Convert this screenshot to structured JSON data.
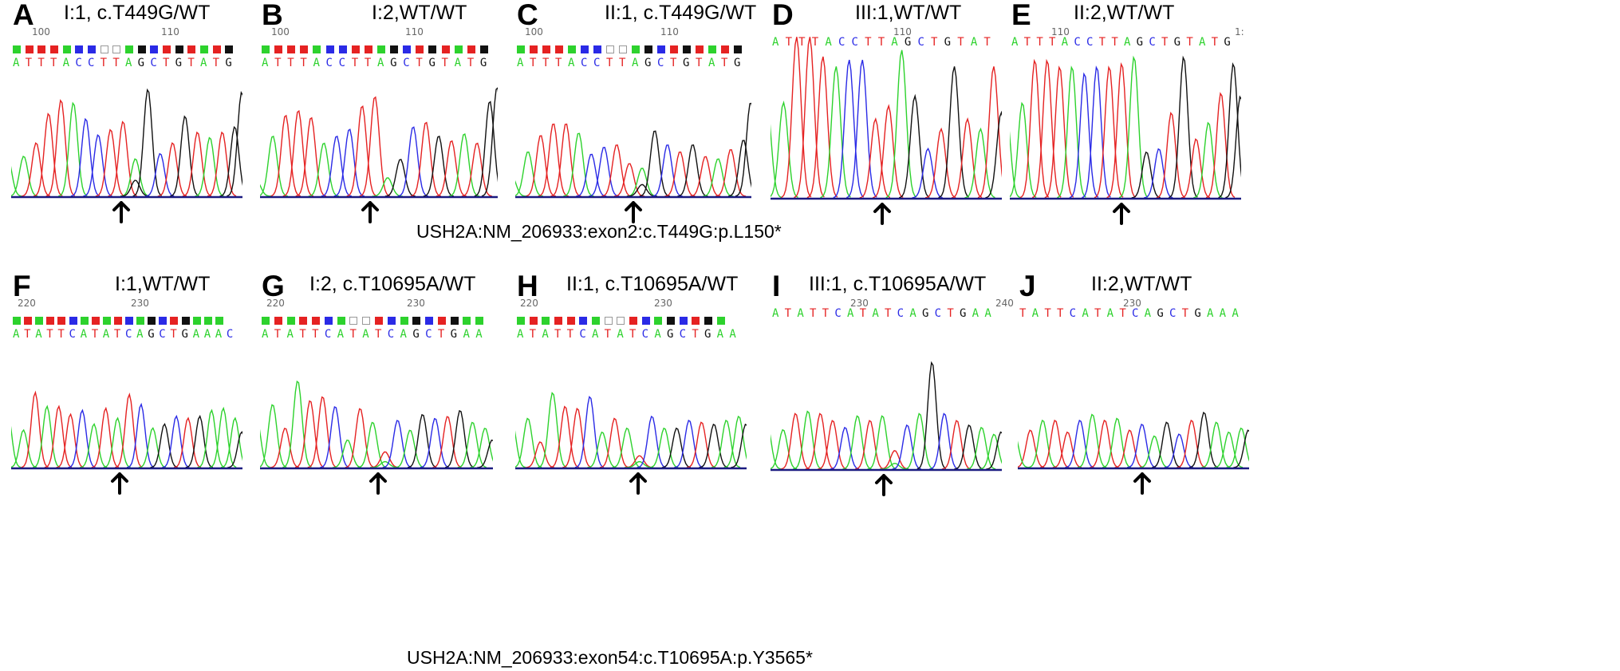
{
  "colors": {
    "A": "#2dd22d",
    "C": "#2a2ae6",
    "G": "#111111",
    "T": "#e52222"
  },
  "captions": {
    "row1": "USH2A:NM_206933:exon2:c.T449G:p.L150*",
    "row2": "USH2A:NM_206933:exon54:c.T10695A:p.Y3565*"
  },
  "panels": [
    {
      "letter": "A",
      "title": "I:1, c.T449G/WT",
      "numbers": [
        "100",
        "110"
      ],
      "squares": [
        "A",
        "T",
        "T",
        "T",
        "A",
        "C",
        "C",
        "T",
        "T",
        "A",
        "G",
        "C",
        "T",
        "G",
        "T",
        "A",
        "T",
        "G"
      ],
      "sequence": [
        "A",
        "T",
        "T",
        "T",
        "A",
        "C",
        "C",
        "T",
        "T",
        "A",
        "G",
        "C",
        "T",
        "G",
        "T",
        "A",
        "T",
        "G"
      ],
      "peaks": [
        [
          0.3,
          0.4,
          0.62,
          0.72,
          0.7,
          0.58,
          0.46,
          0.5,
          0.56,
          0.28,
          0.8,
          0.32,
          0.4,
          0.6,
          0.48,
          0.44,
          0.48,
          0.52
        ],
        [
          0,
          0,
          0,
          0,
          0,
          0,
          0,
          0,
          0,
          0.12,
          0,
          0,
          0,
          0,
          0,
          0,
          0,
          0
        ]
      ],
      "ends": [
        0.3,
        0.78
      ]
    },
    {
      "letter": "B",
      "title": "I:2,WT/WT",
      "numbers": [
        "100",
        "110"
      ],
      "squares": [
        "A",
        "T",
        "T",
        "T",
        "A",
        "C",
        "C",
        "T",
        "T",
        "A",
        "G",
        "C",
        "T",
        "G",
        "T",
        "A",
        "T",
        "G"
      ],
      "sequence": [
        "A",
        "T",
        "T",
        "T",
        "A",
        "C",
        "C",
        "T",
        "T",
        "A",
        "G",
        "C",
        "T",
        "G",
        "T",
        "A",
        "T",
        "G"
      ],
      "peaks": [
        [
          0.52,
          0.7,
          0.74,
          0.68,
          0.46,
          0.52,
          0.58,
          0.78,
          0.86,
          0.16,
          0.32,
          0.6,
          0.64,
          0.52,
          0.48,
          0.54,
          0.46,
          0.82
        ],
        []
      ],
      "ends": [
        0.14,
        0.94
      ]
    },
    {
      "letter": "C",
      "title": "II:1, c.T449G/WT",
      "numbers": [
        "100",
        "110"
      ],
      "squares": [
        "A",
        "T",
        "T",
        "T",
        "A",
        "C",
        "C",
        "T",
        "T",
        "A",
        "G",
        "C",
        "T",
        "G",
        "T",
        "A",
        "T",
        "G"
      ],
      "sequence": [
        "A",
        "T",
        "T",
        "T",
        "A",
        "C",
        "C",
        "T",
        "T",
        "A",
        "G",
        "C",
        "T",
        "G",
        "T",
        "A",
        "T",
        "G"
      ],
      "peaks": [
        [
          0.38,
          0.52,
          0.62,
          0.62,
          0.54,
          0.36,
          0.42,
          0.44,
          0.28,
          0.24,
          0.56,
          0.44,
          0.38,
          0.44,
          0.34,
          0.32,
          0.4,
          0.48
        ],
        [
          0,
          0,
          0,
          0,
          0,
          0,
          0,
          0,
          0,
          0.1,
          0,
          0,
          0,
          0,
          0,
          0,
          0,
          0
        ]
      ],
      "ends": [
        0.18,
        0.8
      ]
    },
    {
      "letter": "D",
      "title": "III:1,WT/WT",
      "numbers": [
        "",
        "110"
      ],
      "squares": [],
      "sequence": [
        "A",
        "T",
        "T",
        "T",
        "A",
        "C",
        "C",
        "T",
        "T",
        "A",
        "G",
        "C",
        "T",
        "G",
        "T",
        "A",
        "T"
      ],
      "peaks": [
        [
          0.58,
          0.98,
          0.98,
          0.86,
          0.8,
          0.84,
          0.84,
          0.48,
          0.56,
          0.9,
          0.62,
          0.3,
          0.42,
          0.8,
          0.48,
          0.42,
          0.8
        ],
        []
      ],
      "ends": [
        0.6,
        0.52
      ]
    },
    {
      "letter": "E",
      "title": "II:2,WT/WT",
      "numbers": [
        "110",
        "1:"
      ],
      "squares": [],
      "sequence": [
        "A",
        "T",
        "T",
        "T",
        "A",
        "C",
        "C",
        "T",
        "T",
        "A",
        "G",
        "C",
        "T",
        "G",
        "T",
        "A",
        "T",
        "G"
      ],
      "peaks": [
        [
          0.58,
          0.84,
          0.84,
          0.8,
          0.8,
          0.76,
          0.8,
          0.8,
          0.82,
          0.86,
          0.28,
          0.3,
          0.52,
          0.86,
          0.36,
          0.46,
          0.64,
          0.82
        ],
        []
      ],
      "ends": [
        0.54,
        0.62
      ]
    },
    {
      "letter": "F",
      "title": "I:1,WT/WT",
      "numbers": [
        "220",
        "230"
      ],
      "squares": [
        "A",
        "T",
        "A",
        "T",
        "T",
        "C",
        "A",
        "T",
        "A",
        "T",
        "C",
        "A",
        "G",
        "C",
        "T",
        "G",
        "A",
        "A",
        "A"
      ],
      "sequence": [
        "A",
        "T",
        "A",
        "T",
        "T",
        "C",
        "A",
        "T",
        "A",
        "T",
        "C",
        "A",
        "G",
        "C",
        "T",
        "G",
        "A",
        "A",
        "A",
        "C"
      ],
      "peaks": [
        [
          0.38,
          0.76,
          0.62,
          0.62,
          0.54,
          0.58,
          0.44,
          0.6,
          0.5,
          0.74,
          0.64,
          0.4,
          0.44,
          0.52,
          0.5,
          0.52,
          0.58,
          0.6,
          0.5
        ],
        []
      ],
      "ends": [
        0.56,
        0.36
      ]
    },
    {
      "letter": "G",
      "title": "I:2, c.T10695A/WT",
      "numbers": [
        "220",
        "230"
      ],
      "squares": [
        "A",
        "T",
        "A",
        "T",
        "T",
        "C",
        "A",
        "T",
        "A",
        "T",
        "C",
        "A",
        "G",
        "C",
        "T",
        "G",
        "A",
        "A"
      ],
      "sequence": [
        "A",
        "T",
        "A",
        "T",
        "T",
        "C",
        "A",
        "T",
        "A",
        "T",
        "C",
        "A",
        "G",
        "C",
        "T",
        "G",
        "A",
        "A"
      ],
      "peaks": [
        [
          0.64,
          0.4,
          0.88,
          0.68,
          0.72,
          0.62,
          0.28,
          0.6,
          0.46,
          0.16,
          0.48,
          0.38,
          0.54,
          0.5,
          0.52,
          0.58,
          0.46,
          0.4
        ],
        [
          0,
          0,
          0,
          0,
          0,
          0,
          0,
          0,
          0,
          0.06,
          0,
          0,
          0,
          0,
          0,
          0,
          0,
          0
        ]
      ],
      "ends": [
        0.52,
        0.28
      ]
    },
    {
      "letter": "H",
      "title": "II:1, c.T10695A/WT",
      "numbers": [
        "220",
        "230"
      ],
      "squares": [
        "A",
        "T",
        "A",
        "T",
        "T",
        "C",
        "A",
        "T",
        "A",
        "T",
        "C",
        "A",
        "G",
        "C",
        "T",
        "G",
        "A"
      ],
      "sequence": [
        "A",
        "T",
        "A",
        "T",
        "T",
        "C",
        "A",
        "T",
        "A",
        "T",
        "C",
        "A",
        "G",
        "C",
        "T",
        "G",
        "A",
        "A"
      ],
      "peaks": [
        [
          0.5,
          0.26,
          0.76,
          0.62,
          0.6,
          0.72,
          0.36,
          0.5,
          0.4,
          0.12,
          0.52,
          0.4,
          0.4,
          0.48,
          0.46,
          0.44,
          0.48,
          0.52
        ],
        [
          0,
          0,
          0,
          0,
          0,
          0,
          0,
          0,
          0,
          0.06,
          0,
          0,
          0,
          0,
          0,
          0,
          0,
          0
        ]
      ],
      "ends": [
        0.5,
        0.44
      ]
    },
    {
      "letter": "I",
      "title": "III:1, c.T10695A/WT",
      "numbers": [
        "230",
        "240"
      ],
      "squares": [],
      "sequence": [
        "A",
        "T",
        "A",
        "T",
        "T",
        "C",
        "A",
        "T",
        "A",
        "T",
        "C",
        "A",
        "G",
        "C",
        "T",
        "G",
        "A",
        "A"
      ],
      "peaks": [
        [
          0.34,
          0.48,
          0.5,
          0.48,
          0.42,
          0.36,
          0.46,
          0.42,
          0.46,
          0.16,
          0.38,
          0.48,
          0.92,
          0.48,
          0.42,
          0.38,
          0.36,
          0.3
        ],
        [
          0,
          0,
          0,
          0,
          0,
          0,
          0,
          0,
          0,
          0.05,
          0,
          0,
          0,
          0,
          0,
          0,
          0,
          0
        ]
      ],
      "ends": [
        0.4,
        0.32
      ]
    },
    {
      "letter": "J",
      "title": "II:2,WT/WT",
      "numbers": [
        "",
        "230"
      ],
      "squares": [],
      "sequence": [
        "T",
        "A",
        "T",
        "T",
        "C",
        "A",
        "T",
        "A",
        "T",
        "C",
        "A",
        "G",
        "C",
        "T",
        "G",
        "A",
        "A",
        "A"
      ],
      "peaks": [
        [
          0.38,
          0.48,
          0.48,
          0.36,
          0.48,
          0.54,
          0.48,
          0.5,
          0.38,
          0.44,
          0.32,
          0.46,
          0.34,
          0.48,
          0.56,
          0.46,
          0.36,
          0.4
        ],
        []
      ],
      "ends": [
        0.36,
        0.38
      ]
    }
  ]
}
